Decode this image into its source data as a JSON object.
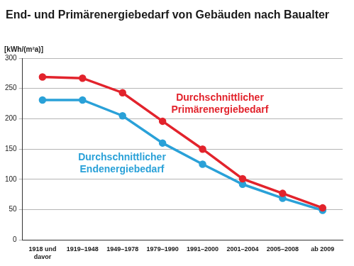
{
  "chart_data": {
    "type": "line",
    "title": "End- und Primärenergiebedarf von Gebäuden nach Baualter",
    "y_label": "[kWh/(m²a)]",
    "categories": [
      "1918 und davor",
      "1919–1948",
      "1949–1978",
      "1979–1990",
      "1991–2000",
      "2001–2004",
      "2005–2008",
      "ab 2009"
    ],
    "series": [
      {
        "name": "Durchschnittlicher Primärenergiebedarf",
        "color": "#e2232c",
        "values": [
          269,
          267,
          243,
          196,
          150,
          101,
          77,
          53
        ]
      },
      {
        "name": "Durchschnittlicher Endenergiebedarf",
        "color": "#2aa1d8",
        "values": [
          231,
          231,
          205,
          160,
          125,
          92,
          69,
          49
        ]
      }
    ],
    "ylim": [
      0,
      300
    ],
    "yticks": [
      0,
      50,
      100,
      150,
      200,
      250,
      300
    ],
    "grid": "y",
    "marker": "circle"
  }
}
